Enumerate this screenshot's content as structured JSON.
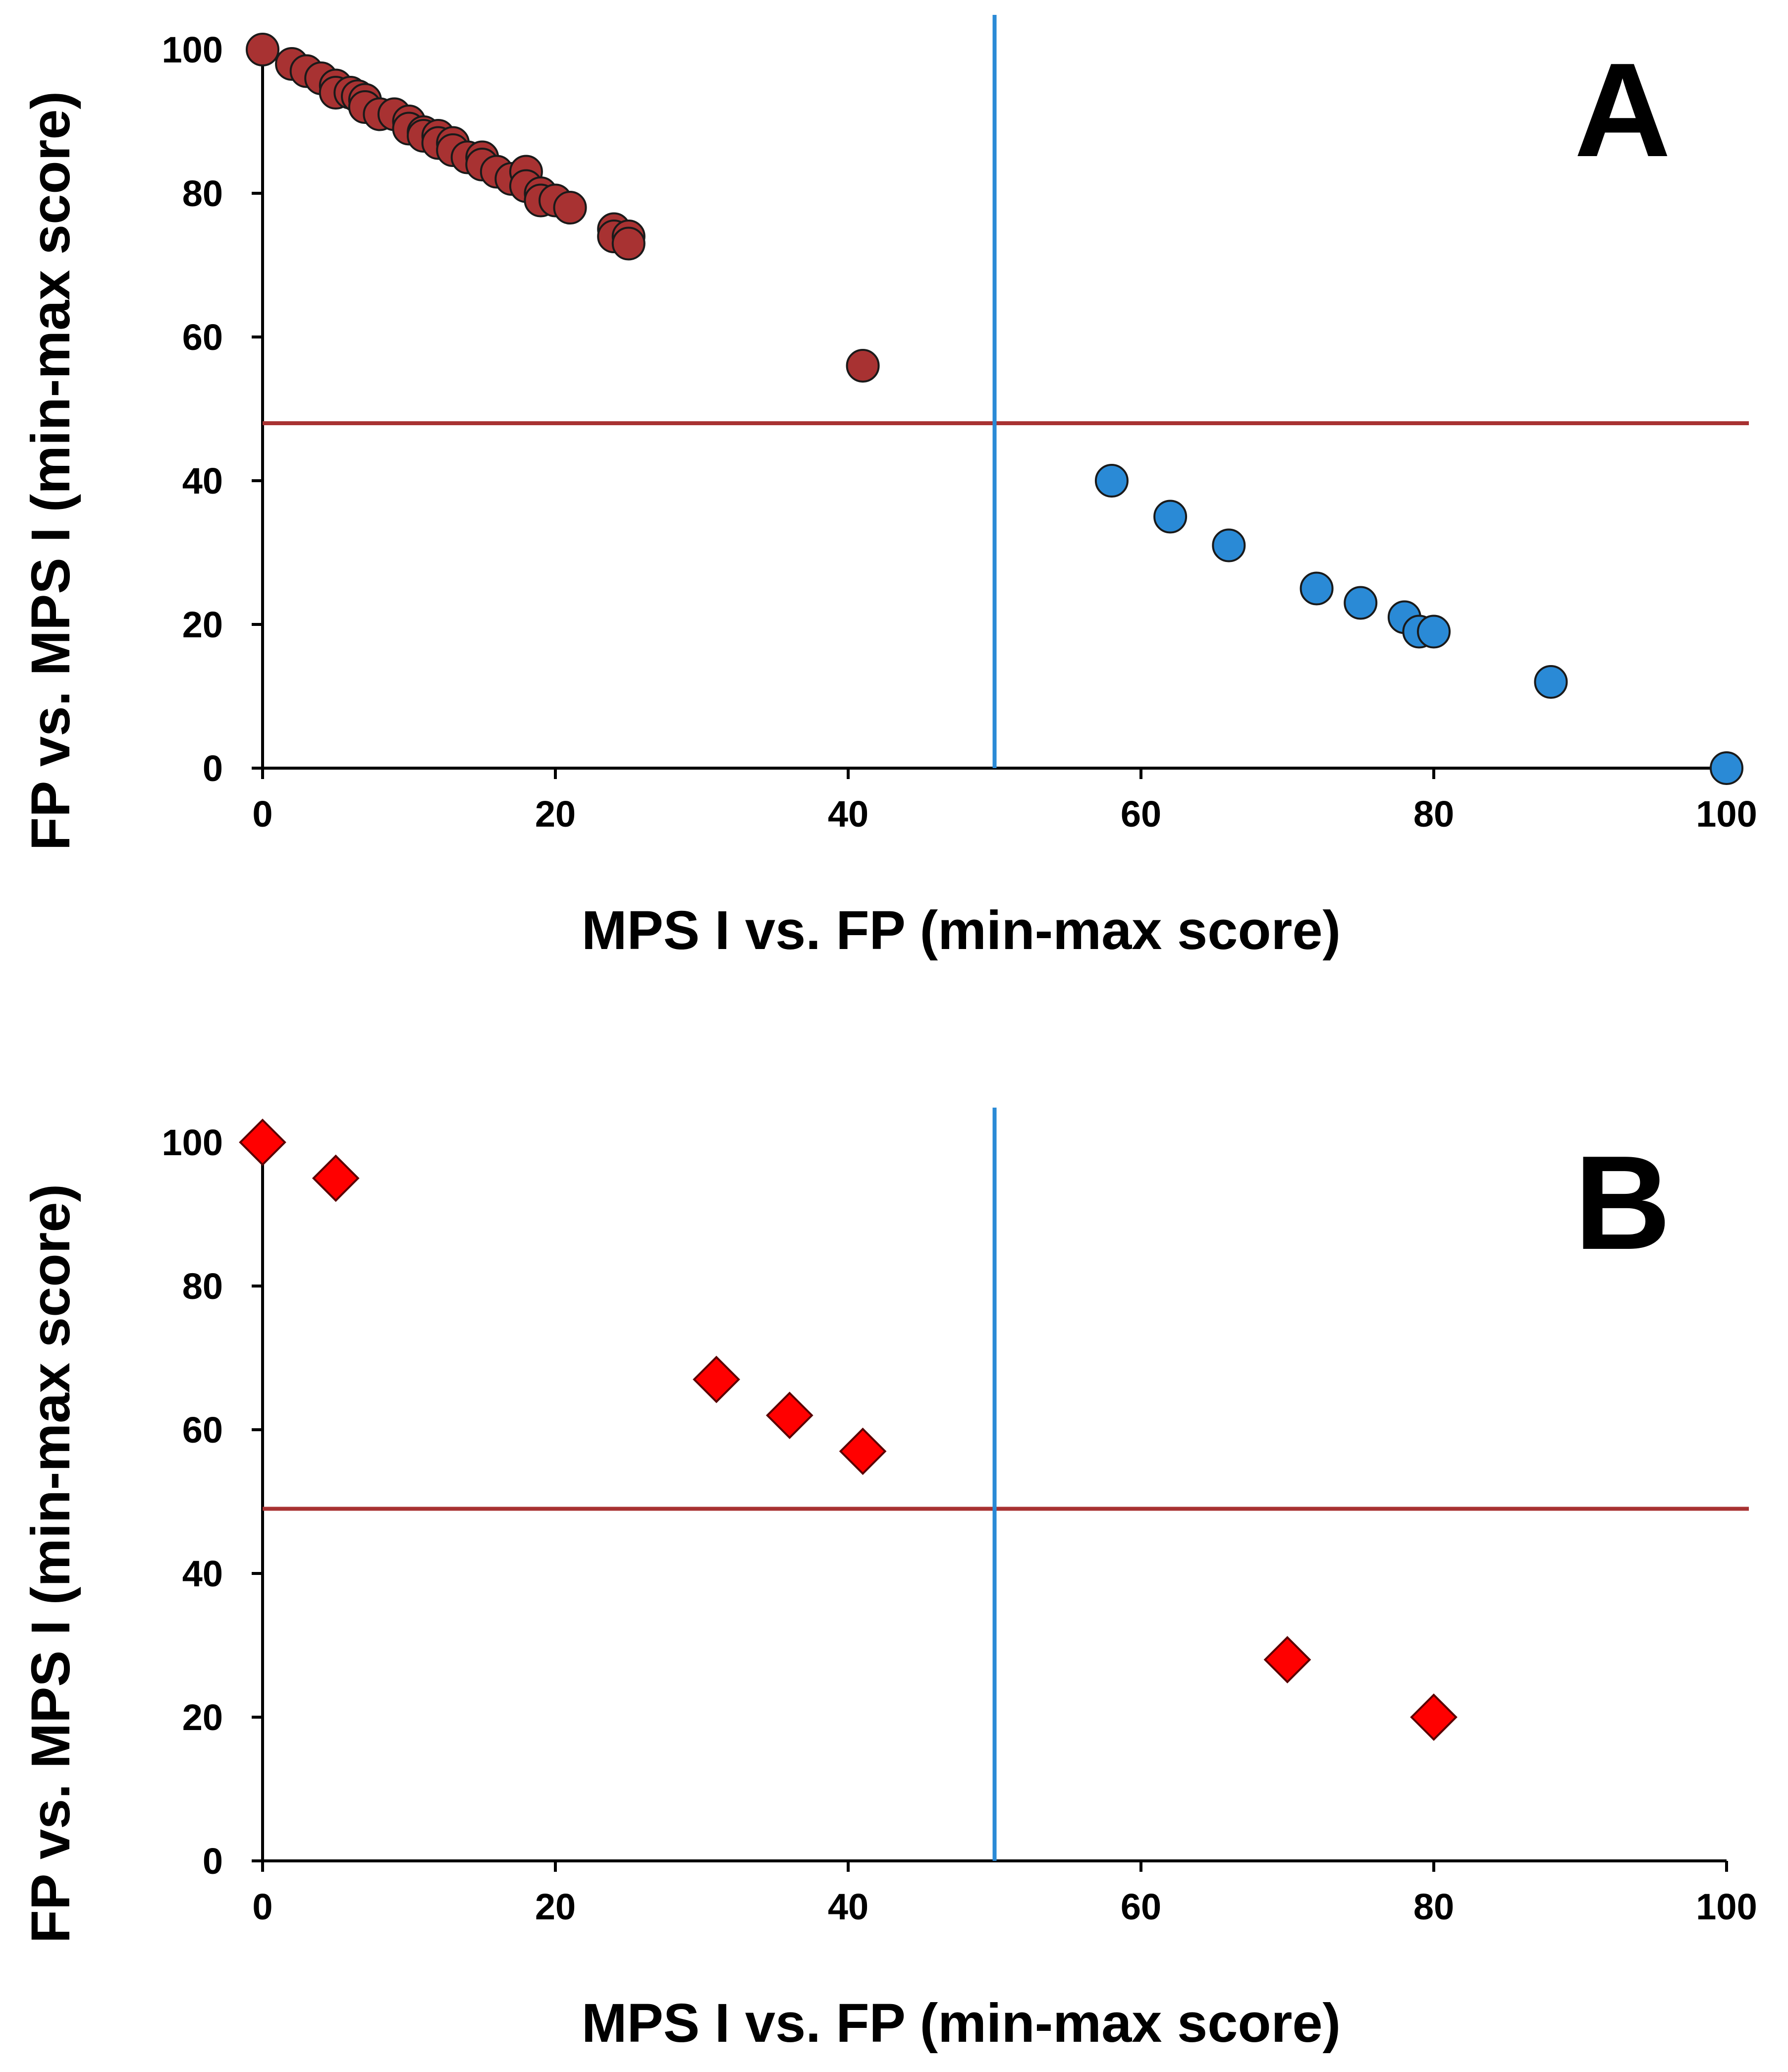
{
  "chart_data": [
    {
      "type": "scatter",
      "panel_label": "A",
      "xlabel": "MPS I vs. FP (min-max score)",
      "ylabel": "FP vs. MPS I (min-max score)",
      "xlim": [
        0,
        100
      ],
      "ylim": [
        0,
        100
      ],
      "xticks": [
        "0",
        "20",
        "40",
        "60",
        "80",
        "100"
      ],
      "yticks": [
        "0",
        "20",
        "40",
        "60",
        "80",
        "100"
      ],
      "horizontal_line": 48,
      "vertical_line": 50,
      "colors": {
        "red_series": "#a83232",
        "blue_series": "#2a8ad6",
        "h_line": "#a83232",
        "v_line": "#2a8ad6"
      },
      "series": [
        {
          "name": "red-circles",
          "marker": "circle",
          "color": "#a83232",
          "points": [
            [
              0,
              100
            ],
            [
              2,
              98
            ],
            [
              3,
              97
            ],
            [
              4,
              96
            ],
            [
              5,
              95
            ],
            [
              5,
              94
            ],
            [
              6,
              94
            ],
            [
              6.5,
              93.5
            ],
            [
              7,
              93
            ],
            [
              7,
              92
            ],
            [
              8,
              91
            ],
            [
              9,
              91
            ],
            [
              10,
              90
            ],
            [
              10,
              89
            ],
            [
              11,
              88.5
            ],
            [
              11,
              88
            ],
            [
              12,
              88
            ],
            [
              12,
              87
            ],
            [
              13,
              87
            ],
            [
              13,
              86
            ],
            [
              14,
              85
            ],
            [
              15,
              85
            ],
            [
              15,
              84
            ],
            [
              16,
              83
            ],
            [
              17,
              82
            ],
            [
              18,
              83
            ],
            [
              18,
              81
            ],
            [
              19,
              80
            ],
            [
              19,
              79
            ],
            [
              20,
              79
            ],
            [
              21,
              78
            ],
            [
              24,
              75
            ],
            [
              24,
              74
            ],
            [
              25,
              74
            ],
            [
              25,
              73
            ],
            [
              41,
              56
            ]
          ]
        },
        {
          "name": "blue-circles",
          "marker": "circle",
          "color": "#2a8ad6",
          "points": [
            [
              58,
              40
            ],
            [
              62,
              35
            ],
            [
              66,
              31
            ],
            [
              72,
              25
            ],
            [
              75,
              23
            ],
            [
              78,
              21
            ],
            [
              79,
              19
            ],
            [
              80,
              19
            ],
            [
              88,
              12
            ],
            [
              100,
              0
            ]
          ]
        }
      ]
    },
    {
      "type": "scatter",
      "panel_label": "B",
      "xlabel": "MPS I vs. FP (min-max score)",
      "ylabel": "FP vs. MPS I (min-max score)",
      "xlim": [
        0,
        100
      ],
      "ylim": [
        0,
        100
      ],
      "xticks": [
        "0",
        "20",
        "40",
        "60",
        "80",
        "100"
      ],
      "yticks": [
        "0",
        "20",
        "40",
        "60",
        "80",
        "100"
      ],
      "horizontal_line": 49,
      "vertical_line": 50,
      "colors": {
        "h_line": "#a83232",
        "v_line": "#2a8ad6"
      },
      "series": [
        {
          "name": "red-diamonds",
          "marker": "diamond",
          "color": "#ff0000",
          "points": [
            [
              0,
              100
            ],
            [
              5,
              95
            ],
            [
              31,
              67
            ],
            [
              36,
              62
            ],
            [
              41,
              57
            ],
            [
              70,
              28
            ],
            [
              80,
              20
            ]
          ]
        }
      ]
    }
  ]
}
